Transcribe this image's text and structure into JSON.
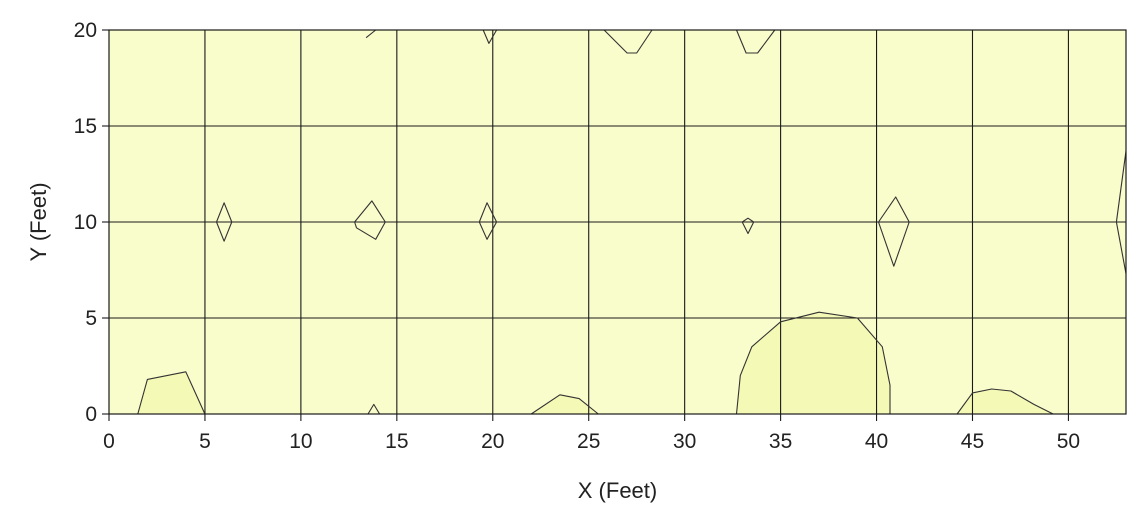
{
  "chart_data": {
    "type": "contour",
    "xlabel": "X (Feet)",
    "ylabel": "Y (Feet)",
    "xlim": [
      0,
      53
    ],
    "ylim": [
      0,
      20
    ],
    "x_ticks": [
      0,
      5,
      10,
      15,
      20,
      25,
      30,
      35,
      40,
      45,
      50
    ],
    "y_ticks": [
      0,
      5,
      10,
      15,
      20
    ],
    "x_tick_labels": [
      "0",
      "5",
      "10",
      "15",
      "20",
      "25",
      "30",
      "35",
      "40",
      "45",
      "50"
    ],
    "y_tick_labels": [
      "0",
      "5",
      "10",
      "15",
      "20"
    ],
    "grid": true,
    "colors": {
      "background_fill": "#f9fccb",
      "highlight_fill": "#f5f9b6",
      "contour_line": "#333333",
      "grid": "#1a1a1a"
    },
    "contours": [
      {
        "points": [
          [
            1.5,
            0
          ],
          [
            2,
            1.8
          ],
          [
            4,
            2.2
          ],
          [
            5,
            0
          ]
        ],
        "closed": false,
        "fill": "highlight"
      },
      {
        "points": [
          [
            5.6,
            10
          ],
          [
            6,
            11
          ],
          [
            6.4,
            10
          ],
          [
            6,
            9
          ]
        ],
        "closed": true,
        "fill": "none"
      },
      {
        "points": [
          [
            12.8,
            10
          ],
          [
            13.7,
            11.1
          ],
          [
            14.4,
            10
          ],
          [
            13.9,
            9.1
          ],
          [
            12.9,
            9.7
          ]
        ],
        "closed": true,
        "fill": "none"
      },
      {
        "points": [
          [
            13.5,
            0
          ],
          [
            13.8,
            0.5
          ],
          [
            14.1,
            0
          ]
        ],
        "closed": false,
        "fill": "none"
      },
      {
        "points": [
          [
            13.4,
            19.6
          ],
          [
            13.9,
            20
          ]
        ],
        "closed": false,
        "fill": "none"
      },
      {
        "points": [
          [
            19.3,
            10
          ],
          [
            19.7,
            11
          ],
          [
            20.2,
            10
          ],
          [
            19.7,
            9.1
          ]
        ],
        "closed": true,
        "fill": "none"
      },
      {
        "points": [
          [
            19.5,
            20
          ],
          [
            19.8,
            19.3
          ],
          [
            20.2,
            20
          ]
        ],
        "closed": false,
        "fill": "none"
      },
      {
        "points": [
          [
            22,
            0
          ],
          [
            23.5,
            1
          ],
          [
            24.5,
            0.8
          ],
          [
            25.5,
            0
          ]
        ],
        "closed": false,
        "fill": "highlight"
      },
      {
        "points": [
          [
            25.8,
            20
          ],
          [
            27,
            18.8
          ],
          [
            27.5,
            18.8
          ],
          [
            28.3,
            20
          ]
        ],
        "closed": false,
        "fill": "none"
      },
      {
        "points": [
          [
            32.7,
            20
          ],
          [
            33.2,
            18.8
          ],
          [
            33.8,
            18.8
          ],
          [
            34.7,
            20
          ]
        ],
        "closed": false,
        "fill": "none"
      },
      {
        "points": [
          [
            33,
            10
          ],
          [
            33.3,
            10.2
          ],
          [
            33.6,
            10
          ],
          [
            33.3,
            9.4
          ]
        ],
        "closed": true,
        "fill": "none"
      },
      {
        "points": [
          [
            32.7,
            0
          ],
          [
            32.9,
            2
          ],
          [
            33.5,
            3.5
          ],
          [
            35,
            4.8
          ],
          [
            37,
            5.3
          ],
          [
            39,
            5
          ],
          [
            40.3,
            3.5
          ],
          [
            40.7,
            1.5
          ],
          [
            40.7,
            0
          ]
        ],
        "closed": false,
        "fill": "highlight"
      },
      {
        "points": [
          [
            40.1,
            10
          ],
          [
            41,
            11.3
          ],
          [
            41.7,
            10
          ],
          [
            40.9,
            7.7
          ]
        ],
        "closed": true,
        "fill": "none"
      },
      {
        "points": [
          [
            44.2,
            0
          ],
          [
            45,
            1.1
          ],
          [
            46,
            1.3
          ],
          [
            47,
            1.2
          ],
          [
            48.2,
            0.5
          ],
          [
            49.2,
            0
          ]
        ],
        "closed": false,
        "fill": "highlight"
      },
      {
        "points": [
          [
            53,
            13.7
          ],
          [
            52.5,
            10
          ],
          [
            53,
            7.3
          ]
        ],
        "closed": false,
        "fill": "none"
      }
    ]
  }
}
